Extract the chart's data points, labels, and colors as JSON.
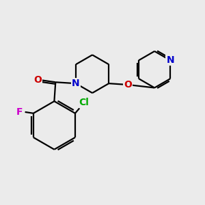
{
  "background_color": "#ebebeb",
  "bond_color": "#000000",
  "bond_width": 1.6,
  "atom_colors": {
    "N": "#0000cc",
    "O": "#cc0000",
    "F": "#cc00cc",
    "Cl": "#00aa00",
    "C": "#000000"
  },
  "font_size": 10,
  "fig_size": [
    3.0,
    3.0
  ],
  "dpi": 100
}
